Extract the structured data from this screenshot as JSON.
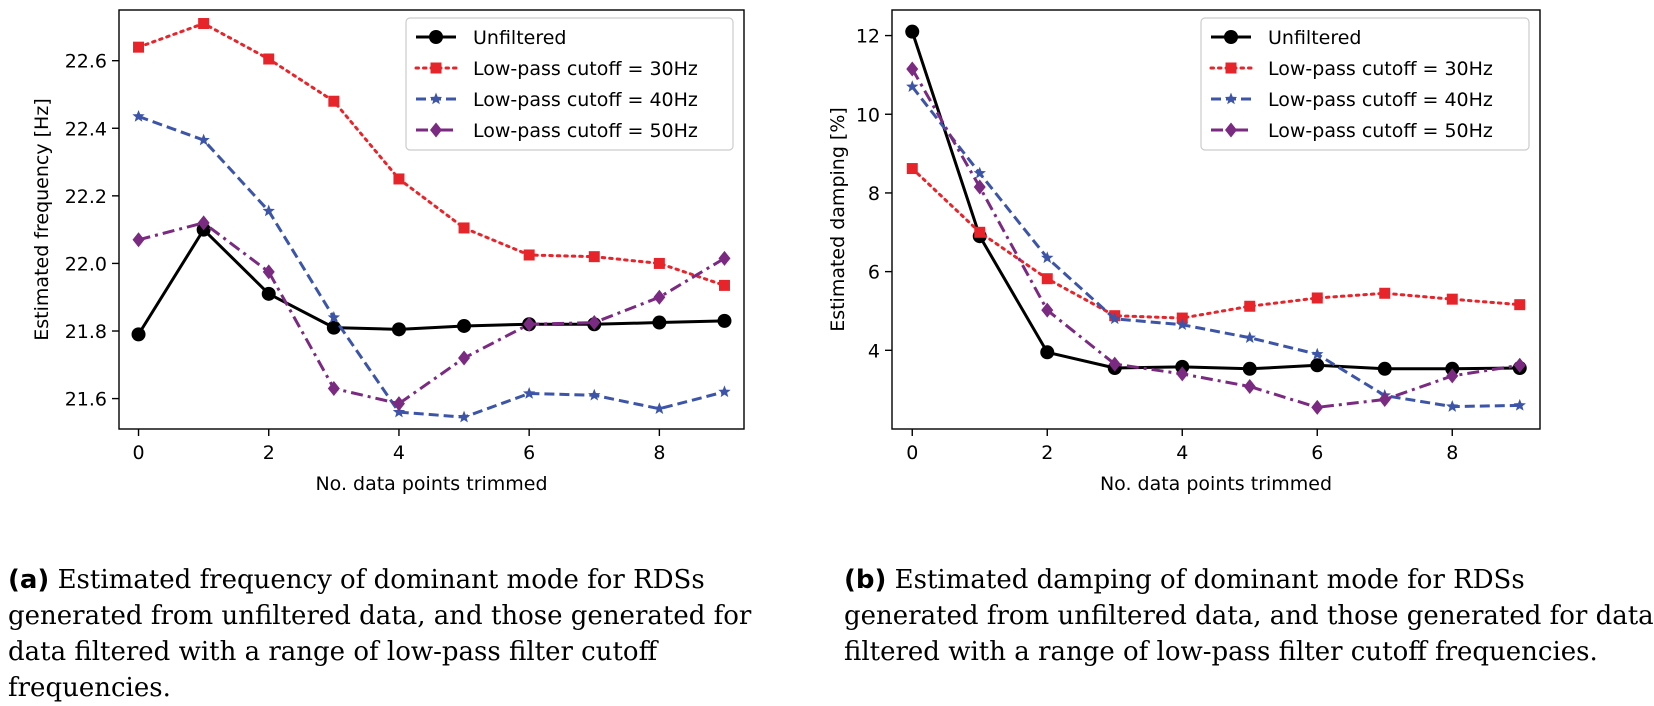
{
  "chart_data": [
    {
      "type": "line",
      "caption_label": "(a)",
      "caption_text": "Estimated frequency of dominant mode for RDSs generated from unfiltered data, and those generated for data filtered with a range of low-pass filter cutoff frequencies.",
      "xlabel": "No. data points trimmed",
      "ylabel": "Estimated frequency [Hz]",
      "xlim": [
        -0.3,
        9.3
      ],
      "ylim": [
        21.51,
        22.75
      ],
      "xticks": [
        0,
        2,
        4,
        6,
        8
      ],
      "yticks": [
        21.6,
        21.8,
        22.0,
        22.2,
        22.4,
        22.6
      ],
      "ytick_labels": [
        "21.6",
        "21.8",
        "22.0",
        "22.2",
        "22.4",
        "22.6"
      ],
      "legend_position": "top-right",
      "x": [
        0,
        1,
        2,
        3,
        4,
        5,
        6,
        7,
        8,
        9
      ],
      "series": [
        {
          "name": "Unfiltered",
          "color": "#000000",
          "dash": "solid",
          "marker": "circle",
          "values": [
            21.79,
            22.1,
            21.91,
            21.81,
            21.805,
            21.815,
            21.82,
            21.82,
            21.825,
            21.83
          ]
        },
        {
          "name": "Low-pass cutoff = 30Hz",
          "color": "#e8242b",
          "dash": "dotted",
          "marker": "square",
          "values": [
            22.64,
            22.71,
            22.605,
            22.48,
            22.25,
            22.105,
            22.025,
            22.02,
            22.0,
            21.935
          ]
        },
        {
          "name": "Low-pass cutoff = 40Hz",
          "color": "#3c55a8",
          "dash": "dashed",
          "marker": "star",
          "values": [
            22.435,
            22.365,
            22.155,
            21.84,
            21.56,
            21.545,
            21.615,
            21.61,
            21.57,
            21.62
          ]
        },
        {
          "name": "Low-pass cutoff = 50Hz",
          "color": "#7b2a82",
          "dash": "dashdot",
          "marker": "diamond",
          "values": [
            22.07,
            22.12,
            21.975,
            21.63,
            21.585,
            21.72,
            21.82,
            21.825,
            21.9,
            22.015
          ]
        }
      ]
    },
    {
      "type": "line",
      "caption_label": "(b)",
      "caption_text": "Estimated damping of dominant mode for RDSs generated from unfiltered data, and those generated for data filtered with a range of low-pass filter cutoff frequencies.",
      "xlabel": "No. data points trimmed",
      "ylabel": "Estimated damping [%]",
      "xlim": [
        -0.3,
        9.3
      ],
      "ylim": [
        2.0,
        12.65
      ],
      "xticks": [
        0,
        2,
        4,
        6,
        8
      ],
      "yticks": [
        4,
        6,
        8,
        10,
        12
      ],
      "ytick_labels": [
        "4",
        "6",
        "8",
        "10",
        "12"
      ],
      "legend_position": "top-right",
      "x": [
        0,
        1,
        2,
        3,
        4,
        5,
        6,
        7,
        8,
        9
      ],
      "series": [
        {
          "name": "Unfiltered",
          "color": "#000000",
          "dash": "solid",
          "marker": "circle",
          "values": [
            12.1,
            6.9,
            3.95,
            3.55,
            3.58,
            3.53,
            3.62,
            3.53,
            3.53,
            3.55
          ]
        },
        {
          "name": "Low-pass cutoff = 30Hz",
          "color": "#e8242b",
          "dash": "dotted",
          "marker": "square",
          "values": [
            8.62,
            7.0,
            5.82,
            4.88,
            4.82,
            5.12,
            5.33,
            5.45,
            5.3,
            5.16
          ]
        },
        {
          "name": "Low-pass cutoff = 40Hz",
          "color": "#3c55a8",
          "dash": "dashed",
          "marker": "star",
          "values": [
            10.7,
            8.5,
            6.35,
            4.8,
            4.65,
            4.32,
            3.9,
            2.85,
            2.57,
            2.6
          ]
        },
        {
          "name": "Low-pass cutoff = 50Hz",
          "color": "#7b2a82",
          "dash": "dashdot",
          "marker": "diamond",
          "values": [
            11.15,
            8.15,
            5.02,
            3.65,
            3.4,
            3.08,
            2.55,
            2.75,
            3.35,
            3.62
          ]
        }
      ]
    }
  ]
}
